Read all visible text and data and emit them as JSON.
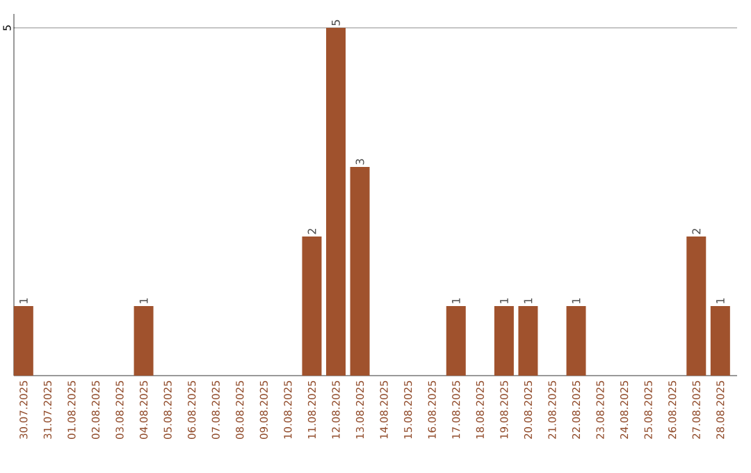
{
  "chart_data": {
    "type": "bar",
    "categories": [
      "30.07.2025",
      "31.07.2025",
      "01.08.2025",
      "02.08.2025",
      "03.08.2025",
      "04.08.2025",
      "05.08.2025",
      "06.08.2025",
      "07.08.2025",
      "08.08.2025",
      "09.08.2025",
      "10.08.2025",
      "11.08.2025",
      "12.08.2025",
      "13.08.2025",
      "14.08.2025",
      "15.08.2025",
      "16.08.2025",
      "17.08.2025",
      "18.08.2025",
      "19.08.2025",
      "20.08.2025",
      "21.08.2025",
      "22.08.2025",
      "23.08.2025",
      "24.08.2025",
      "25.08.2025",
      "26.08.2025",
      "27.08.2025",
      "28.08.2025"
    ],
    "values": [
      1,
      0,
      0,
      0,
      0,
      1,
      0,
      0,
      0,
      0,
      0,
      0,
      2,
      5,
      3,
      0,
      0,
      0,
      1,
      0,
      1,
      1,
      0,
      1,
      0,
      0,
      0,
      0,
      2,
      1
    ],
    "value_labels": [
      "1",
      null,
      null,
      null,
      null,
      "1",
      null,
      null,
      null,
      null,
      null,
      null,
      "2",
      "5",
      "3",
      null,
      null,
      null,
      "1",
      null,
      "1",
      "1",
      null,
      "1",
      null,
      null,
      null,
      null,
      "2",
      "1"
    ],
    "color": "#a0522d",
    "ylim": [
      0,
      5.2
    ],
    "yticks": [
      5
    ],
    "grid": "y"
  }
}
